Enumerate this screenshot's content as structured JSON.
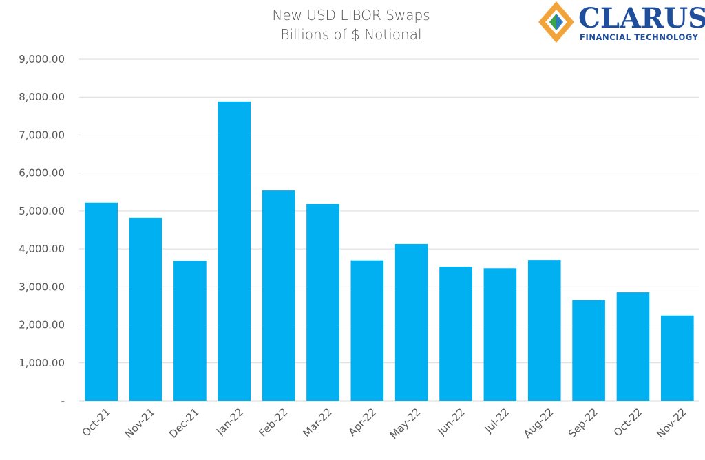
{
  "brand": {
    "name": "CLARUS",
    "tagline": "FINANCIAL TECHNOLOGY",
    "colors": {
      "navy": "#1f4e9c",
      "orange": "#f2a33a",
      "green": "#3fa34d",
      "blue": "#2b7bbf"
    }
  },
  "chart_data": {
    "type": "bar",
    "title": "New USD LIBOR Swaps",
    "subtitle": "Billions of $ Notional",
    "categories": [
      "Oct-21",
      "Nov-21",
      "Dec-21",
      "Jan-22",
      "Feb-22",
      "Mar-22",
      "Apr-22",
      "May-22",
      "Jun-22",
      "Jul-22",
      "Aug-22",
      "Sep-22",
      "Oct-22",
      "Nov-22"
    ],
    "values": [
      5220,
      4820,
      3690,
      7880,
      5540,
      5190,
      3700,
      4130,
      3530,
      3490,
      3710,
      2650,
      2860,
      2250
    ],
    "ylim": [
      0,
      9000
    ],
    "yticks": [
      0,
      1000,
      2000,
      3000,
      4000,
      5000,
      6000,
      7000,
      8000,
      9000
    ],
    "ytick_labels": [
      "-",
      "1,000.00",
      "2,000.00",
      "3,000.00",
      "4,000.00",
      "5,000.00",
      "6,000.00",
      "7,000.00",
      "8,000.00",
      "9,000.00"
    ],
    "xlabel": "",
    "ylabel": "",
    "grid": true,
    "legend": false,
    "bar_color": "#00b0f0",
    "grid_color": "#d9d9d9"
  }
}
